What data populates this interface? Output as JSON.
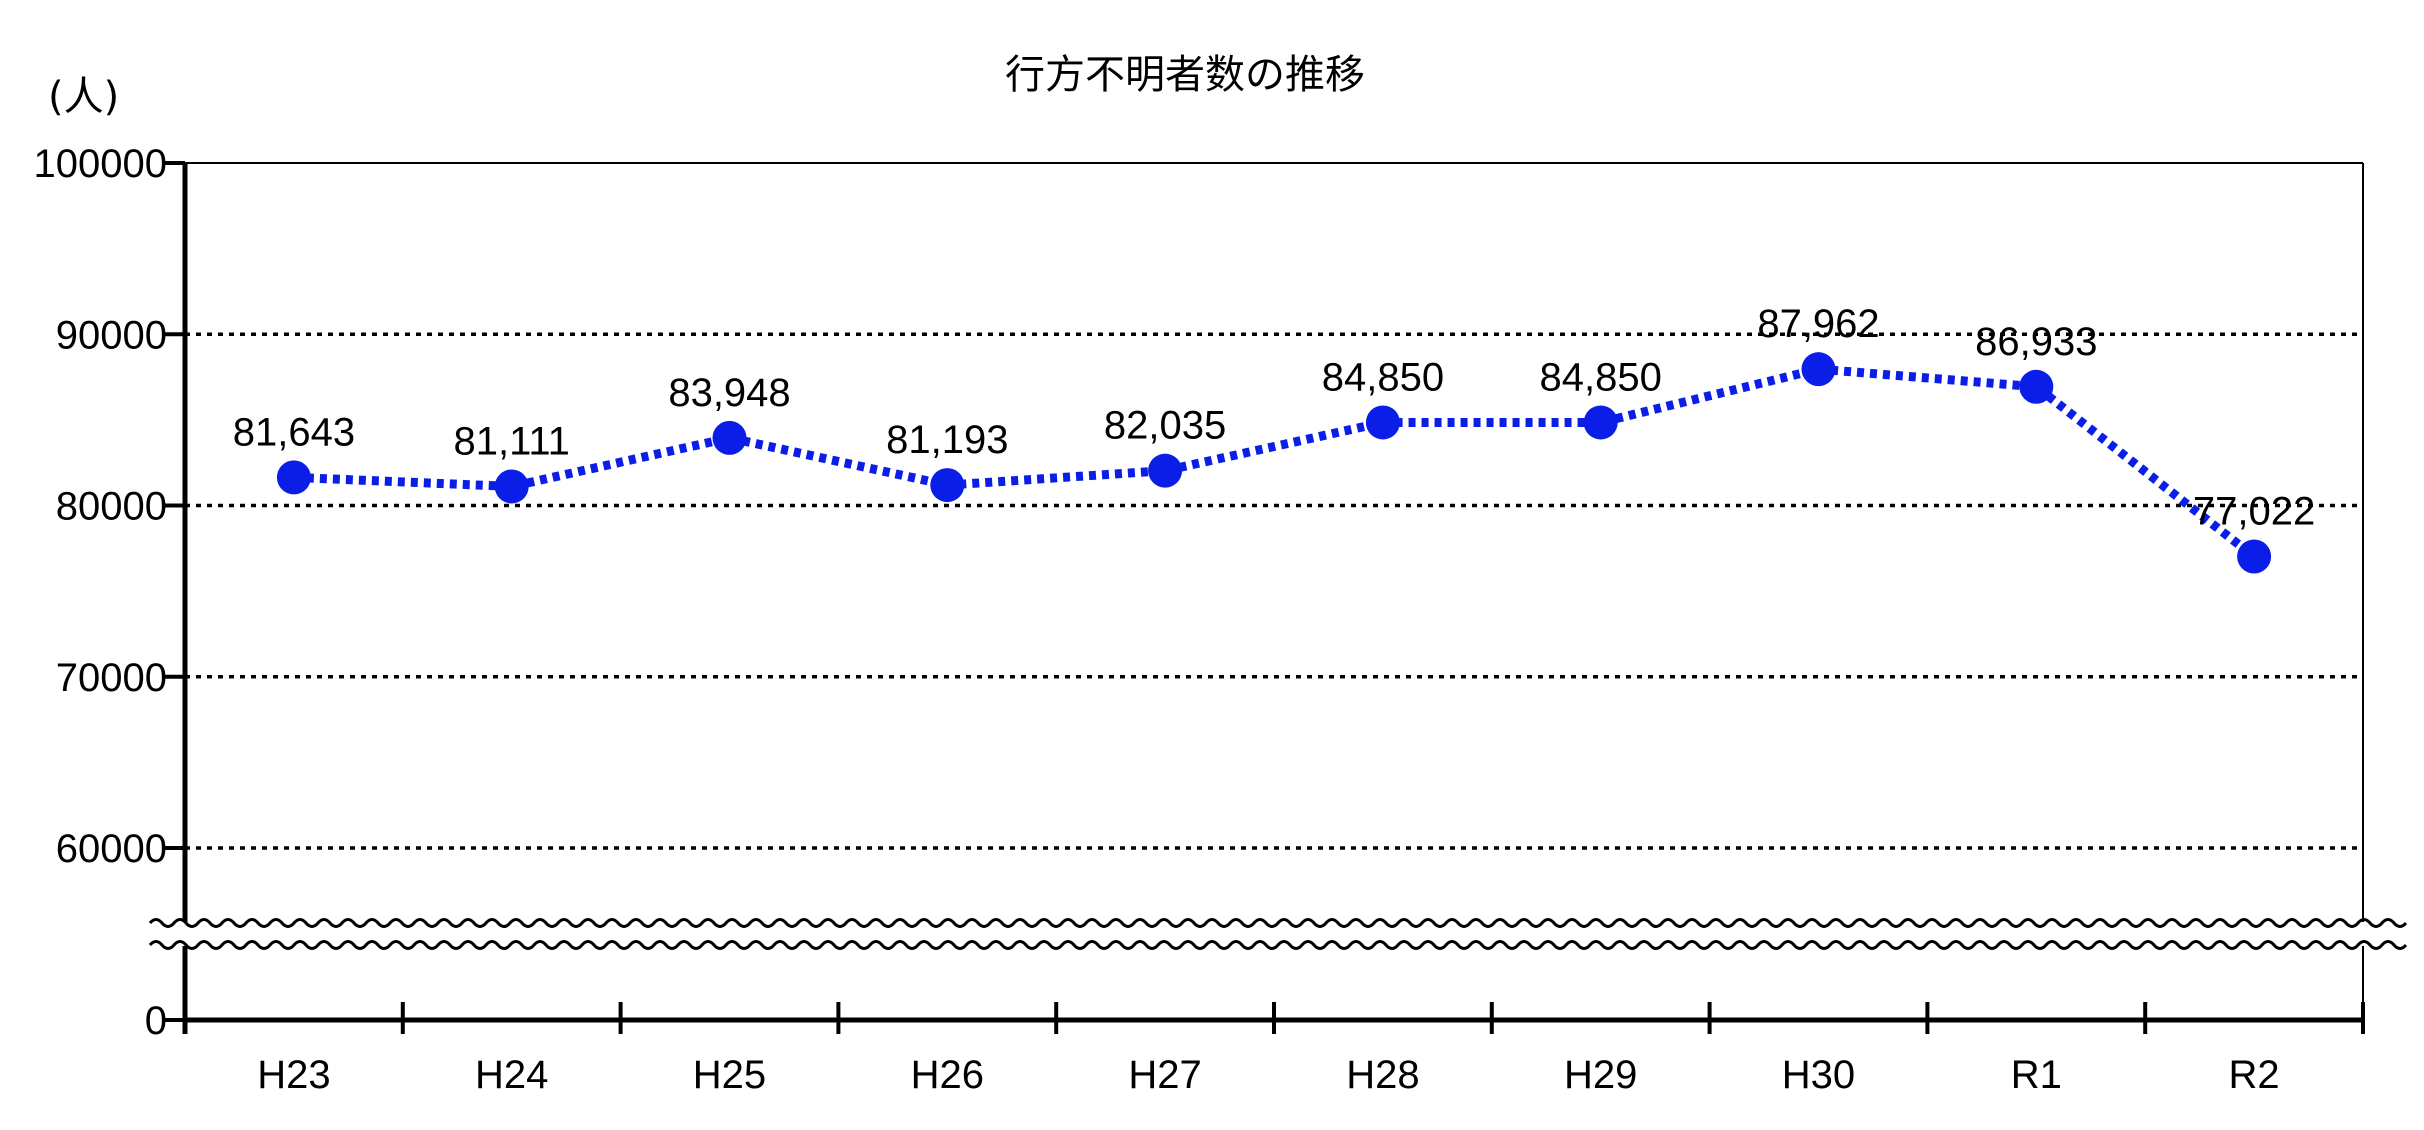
{
  "chart_data": {
    "type": "line",
    "title": "行方不明者数の推移",
    "ylabel": "(人)",
    "xlabel": "",
    "categories": [
      "H23",
      "H24",
      "H25",
      "H26",
      "H27",
      "H28",
      "H29",
      "H30",
      "R1",
      "R2"
    ],
    "series": [
      {
        "values": [
          81643,
          81111,
          83948,
          81193,
          82035,
          84850,
          84850,
          87962,
          86933,
          77022
        ],
        "labels": [
          "81,643",
          "81,111",
          "83,948",
          "81,193",
          "82,035",
          "84,850",
          "84,850",
          "87,962",
          "86,933",
          "77,022"
        ],
        "color": "#0b1ee8",
        "line_style": "dotted",
        "marker": "circle"
      }
    ],
    "yticks": [
      "0",
      "60000",
      "70000",
      "80000",
      "90000",
      "100000"
    ],
    "ylim_upper": [
      55000,
      100000
    ],
    "axis_break": "between 0 and 60000",
    "grid": "horizontal dotted"
  }
}
